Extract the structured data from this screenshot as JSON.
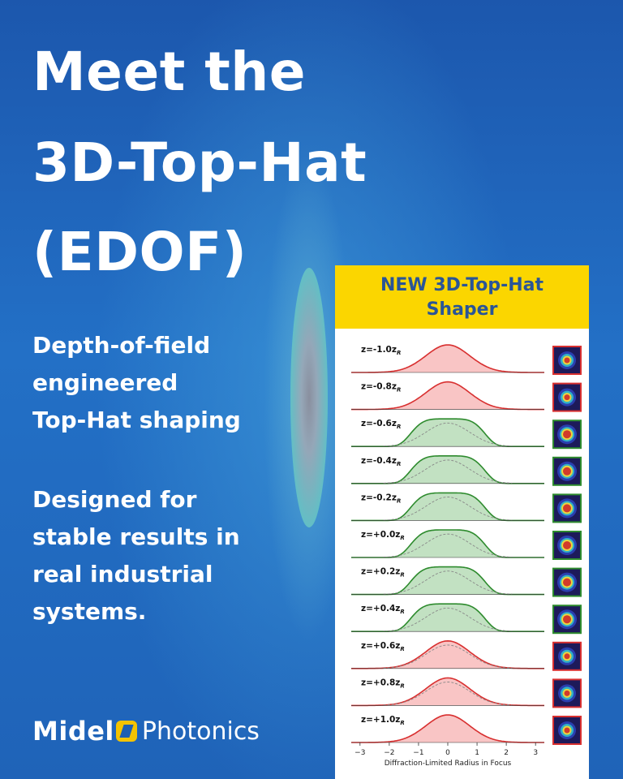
{
  "headline": [
    "Meet the",
    "3D-Top-Hat",
    "(EDOF)"
  ],
  "subtitle1": [
    "Depth-of-field",
    "engineered",
    "Top-Hat shaping"
  ],
  "subtitle2": [
    "Designed for",
    "stable results in",
    "real industrial",
    "systems."
  ],
  "logo": {
    "brand": "Midel",
    "product": "Photonics"
  },
  "panel": {
    "title_line1": "NEW 3D-Top-Hat",
    "title_line2": "Shaper"
  },
  "colors": {
    "good": "#2e8b2e",
    "bad": "#d83030",
    "panel_header": "#fbd600",
    "panel_title": "#2a5597"
  },
  "chart_data": {
    "type": "line",
    "xlabel": "Diffraction-Limited Radius in Focus",
    "x_ticks": [
      -3,
      -2,
      -1,
      0,
      1,
      2,
      3
    ],
    "xlim": [
      -3.3,
      3.3
    ],
    "rows": [
      {
        "label": "z=-1.0z",
        "sub": "R",
        "status": "red"
      },
      {
        "label": "z=-0.8z",
        "sub": "R",
        "status": "red"
      },
      {
        "label": "z=-0.6z",
        "sub": "R",
        "status": "green"
      },
      {
        "label": "z=-0.4z",
        "sub": "R",
        "status": "green"
      },
      {
        "label": "z=-0.2z",
        "sub": "R",
        "status": "green"
      },
      {
        "label": "z=+0.0z",
        "sub": "R",
        "status": "green"
      },
      {
        "label": "z=+0.2z",
        "sub": "R",
        "status": "green"
      },
      {
        "label": "z=+0.4z",
        "sub": "R",
        "status": "green"
      },
      {
        "label": "z=+0.6z",
        "sub": "R",
        "status": "red"
      },
      {
        "label": "z=+0.8z",
        "sub": "R",
        "status": "red"
      },
      {
        "label": "z=+1.0z",
        "sub": "R",
        "status": "red"
      }
    ]
  }
}
